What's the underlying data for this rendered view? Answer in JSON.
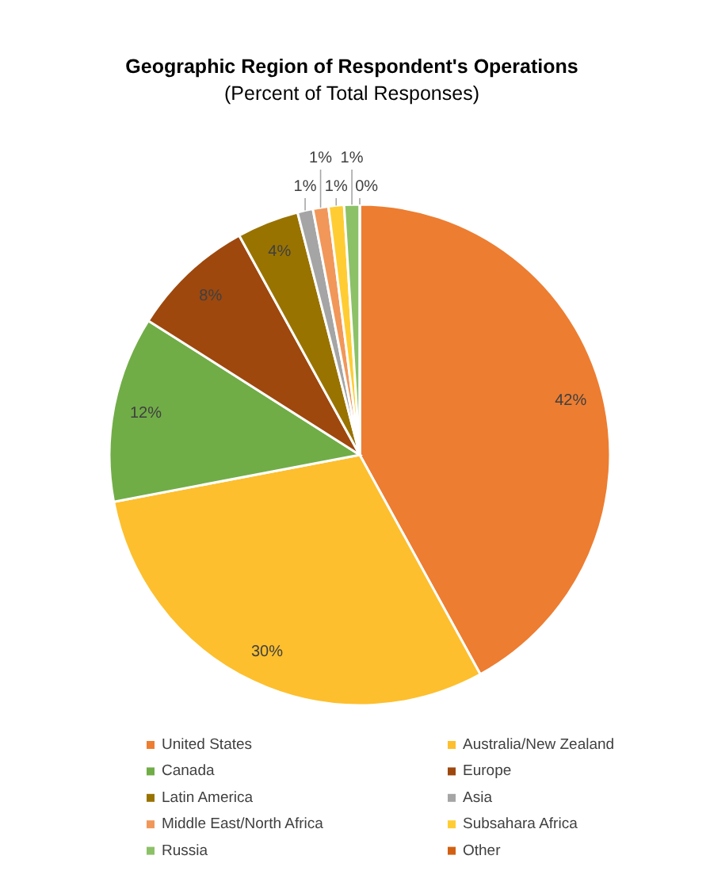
{
  "chart_data": {
    "type": "pie",
    "title": "Geographic Region of Respondent's Operations",
    "subtitle": "(Percent of Total Responses)",
    "categories": [
      "United States",
      "Australia/New Zealand",
      "Canada",
      "Europe",
      "Latin America",
      "Asia",
      "Middle East/North Africa",
      "Subsahara Africa",
      "Russia",
      "Other"
    ],
    "values": [
      42,
      30,
      12,
      8,
      4,
      1,
      1,
      1,
      1,
      0
    ],
    "colors": [
      "#ed7d31",
      "#fdbf2d",
      "#71ad47",
      "#9e480e",
      "#997300",
      "#a5a5a5",
      "#f1975a",
      "#ffcd33",
      "#8cc168",
      "#d26012"
    ],
    "value_labels": [
      "42%",
      "30%",
      "12%",
      "8%",
      "4%",
      "1%",
      "1%",
      "1%",
      "1%",
      "0%"
    ],
    "legend": "bottom"
  }
}
